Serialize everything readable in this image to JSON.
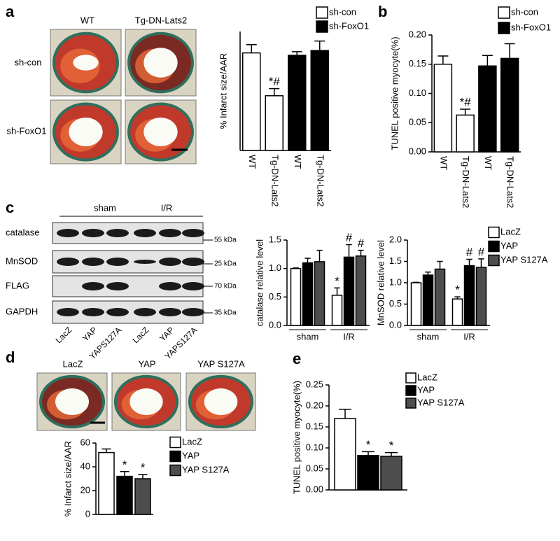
{
  "panel_letters": [
    "a",
    "b",
    "c",
    "d",
    "e"
  ],
  "images": {
    "a": {
      "columns": [
        "WT",
        "Tg-DN-Lats2"
      ],
      "rows": [
        "sh-con",
        "sh-FoxO1"
      ]
    },
    "d": {
      "columns": [
        "LacZ",
        "YAP",
        "YAP S127A"
      ]
    }
  },
  "blot": {
    "groups": [
      "sham",
      "I/R"
    ],
    "proteins": [
      "catalase",
      "MnSOD",
      "FLAG",
      "GAPDH"
    ],
    "markers": [
      "55 kDa",
      "25 kDa",
      "70 kDa",
      "35 kDa"
    ],
    "lanes": [
      "LacZ",
      "YAP",
      "YAPS127A",
      "LacZ",
      "YAP",
      "YAPS127A"
    ]
  },
  "chart_data": [
    {
      "type": "bar",
      "y_label": "% Infarct size/AAR",
      "categories": [
        "WT",
        "Tg-DN-Lats2",
        "WT",
        "Tg-DN-Lats2"
      ],
      "series": [
        {
          "name": "sh-con",
          "color": "#ffffff",
          "values": [
            41,
            23,
            null,
            null
          ],
          "errors": [
            3.5,
            3,
            null,
            null
          ],
          "annotations": [
            null,
            "*#",
            null,
            null
          ]
        },
        {
          "name": "sh-FoxO1",
          "color": "#000000",
          "values": [
            null,
            null,
            40,
            42
          ],
          "errors": [
            null,
            null,
            1.5,
            4
          ],
          "annotations": [
            null,
            null,
            null,
            null
          ]
        }
      ],
      "ylim": [
        0,
        50
      ]
    },
    {
      "type": "bar",
      "y_label": "TUNEL positive myocyte(%)",
      "categories": [
        "WT",
        "Tg-DN-Lats2",
        "WT",
        "Tg-DN-Lats2"
      ],
      "series": [
        {
          "name": "sh-con",
          "color": "#ffffff",
          "values": [
            0.15,
            0.063,
            null,
            null
          ],
          "errors": [
            0.014,
            0.01,
            null,
            null
          ],
          "annotations": [
            null,
            "*#",
            null,
            null
          ]
        },
        {
          "name": "sh-FoxO1",
          "color": "#000000",
          "values": [
            null,
            null,
            0.147,
            0.16
          ],
          "errors": [
            null,
            null,
            0.018,
            0.025
          ],
          "annotations": [
            null,
            null,
            null,
            null
          ]
        }
      ],
      "ylim": [
        0,
        0.2
      ],
      "yticks": [
        {
          "value": 0,
          "label": "0.00"
        },
        {
          "value": 0.05,
          "label": "0.05"
        },
        {
          "value": 0.1,
          "label": "0.10"
        },
        {
          "value": 0.15,
          "label": "0.15"
        },
        {
          "value": 0.2,
          "label": "0.20"
        }
      ]
    },
    {
      "type": "bar",
      "y_label": "catalase relative level",
      "categories": [
        "sham",
        "I/R"
      ],
      "series": [
        {
          "color": "#ffffff",
          "values": [
            1.0,
            0.53
          ],
          "errors": [
            0.01,
            0.13
          ],
          "annotations": [
            null,
            "*"
          ]
        },
        {
          "color": "#000000",
          "values": [
            1.1,
            1.2
          ],
          "errors": [
            0.08,
            0.22
          ],
          "annotations": [
            null,
            "#"
          ]
        },
        {
          "color": "#4d4d4d",
          "values": [
            1.12,
            1.22
          ],
          "errors": [
            0.2,
            0.1
          ],
          "annotations": [
            null,
            "#"
          ]
        }
      ],
      "ylim": [
        0,
        1.5
      ],
      "yticks": [
        {
          "value": 0,
          "label": "0.0"
        },
        {
          "value": 0.5,
          "label": "0.5"
        },
        {
          "value": 1,
          "label": "1.0"
        },
        {
          "value": 1.5,
          "label": "1.5"
        }
      ]
    },
    {
      "type": "bar",
      "y_label": "MnSOD relative level",
      "categories": [
        "sham",
        "I/R"
      ],
      "series": [
        {
          "name": "LacZ",
          "color": "#ffffff",
          "values": [
            1.0,
            0.62
          ],
          "errors": [
            0.01,
            0.05
          ],
          "annotations": [
            null,
            "*"
          ]
        },
        {
          "name": "YAP",
          "color": "#000000",
          "values": [
            1.18,
            1.4
          ],
          "errors": [
            0.07,
            0.15
          ],
          "annotations": [
            null,
            "#"
          ]
        },
        {
          "name": "YAP S127A",
          "color": "#4d4d4d",
          "values": [
            1.32,
            1.36
          ],
          "errors": [
            0.18,
            0.2
          ],
          "annotations": [
            null,
            "#"
          ]
        }
      ],
      "ylim": [
        0,
        2
      ],
      "yticks": [
        {
          "value": 0,
          "label": "0.0"
        },
        {
          "value": 0.5,
          "label": "0.5"
        },
        {
          "value": 1,
          "label": "1.0"
        },
        {
          "value": 1.5,
          "label": "1.5"
        },
        {
          "value": 2,
          "label": "2.0"
        }
      ]
    },
    {
      "type": "bar",
      "y_label": "% Infarct size/AAR",
      "series": [
        {
          "name": "LacZ",
          "color": "#ffffff",
          "values": [
            52
          ],
          "errors": [
            3
          ],
          "annotations": [
            null
          ]
        },
        {
          "name": "YAP",
          "color": "#000000",
          "values": [
            32
          ],
          "errors": [
            4
          ],
          "annotations": [
            "*"
          ]
        },
        {
          "name": "YAP S127A",
          "color": "#4d4d4d",
          "values": [
            30
          ],
          "errors": [
            3.5
          ],
          "annotations": [
            "*"
          ]
        }
      ],
      "ylim": [
        0,
        60
      ],
      "yticks": [
        0,
        20,
        40,
        60
      ]
    },
    {
      "type": "bar",
      "y_label": "TUNEL positive myocyte(%)",
      "series": [
        {
          "name": "LacZ",
          "color": "#ffffff",
          "values": [
            0.17
          ],
          "errors": [
            0.022
          ],
          "annotations": [
            null
          ]
        },
        {
          "name": "YAP",
          "color": "#000000",
          "values": [
            0.082
          ],
          "errors": [
            0.009
          ],
          "annotations": [
            "*"
          ]
        },
        {
          "name": "YAP S127A",
          "color": "#4d4d4d",
          "values": [
            0.08
          ],
          "errors": [
            0.009
          ],
          "annotations": [
            "*"
          ]
        }
      ],
      "ylim": [
        0,
        0.25
      ],
      "yticks": [
        {
          "value": 0,
          "label": "0.00"
        },
        {
          "value": 0.05,
          "label": "0.05"
        },
        {
          "value": 0.1,
          "label": "0.10"
        },
        {
          "value": 0.15,
          "label": "0.15"
        },
        {
          "value": 0.2,
          "label": "0.20"
        },
        {
          "value": 0.25,
          "label": "0.25"
        }
      ]
    }
  ]
}
